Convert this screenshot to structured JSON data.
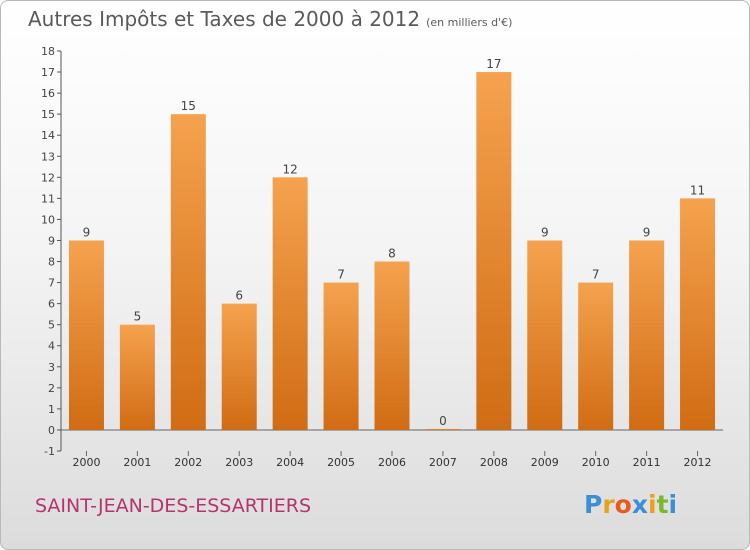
{
  "title": "Autres Impôts et Taxes de 2000 à 2012",
  "unit": "(en milliers d'€)",
  "commune": "SAINT-JEAN-DES-ESSARTIERS",
  "logo": {
    "letters": [
      "P",
      "r",
      "o",
      "x",
      "i",
      "t",
      "i"
    ],
    "colors": [
      "#3a8fd6",
      "#e8a21a",
      "#e85a1e",
      "#3a8fd6",
      "#e8a21a",
      "#7cb82f",
      "#3a8fd6"
    ]
  },
  "colors": {
    "bar_top": "#f5a24e",
    "bar_bottom": "#d06c14"
  },
  "chart_data": {
    "type": "bar",
    "title": "Autres Impôts et Taxes de 2000 à 2012",
    "categories": [
      "2000",
      "2001",
      "2002",
      "2003",
      "2004",
      "2005",
      "2006",
      "2007",
      "2008",
      "2009",
      "2010",
      "2011",
      "2012"
    ],
    "values": [
      9,
      5,
      15,
      6,
      12,
      7,
      8,
      0,
      17,
      9,
      7,
      9,
      11
    ],
    "ylim": [
      -1,
      18
    ],
    "yticks": [
      -1,
      0,
      1,
      2,
      3,
      4,
      5,
      6,
      7,
      8,
      9,
      10,
      11,
      12,
      13,
      14,
      15,
      16,
      17,
      18
    ],
    "grid": false
  }
}
